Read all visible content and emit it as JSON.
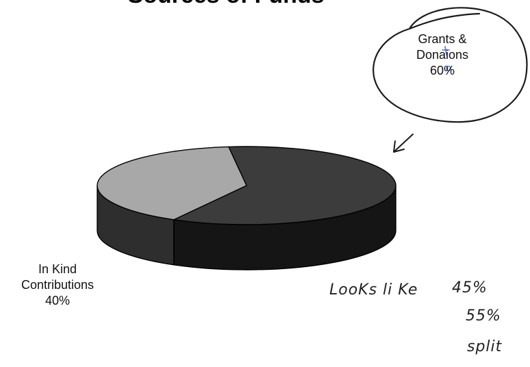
{
  "title": "Sources of Funds",
  "chart_data": {
    "type": "pie",
    "categories": [
      "Grants & Donaions",
      "In Kind Contributions"
    ],
    "values": [
      60,
      40
    ],
    "value_labels": [
      "60%",
      "40%"
    ],
    "style": "3d",
    "colors": {
      "grants_top": "#3c3c3c",
      "grants_side": "#151515",
      "inkind_top": "#a8a8a8",
      "inkind_side": "#2e2e2e"
    }
  },
  "labels": {
    "grants": {
      "line1": "Grants &",
      "line2": "Donaions",
      "value": "60%"
    },
    "inkind": {
      "line1": "In Kind",
      "line2": "Contributions",
      "value": "40%"
    }
  },
  "handwritten": {
    "line1": "LooKs   li Ke",
    "line2": "45%",
    "line3": "55%",
    "line4": "split"
  }
}
